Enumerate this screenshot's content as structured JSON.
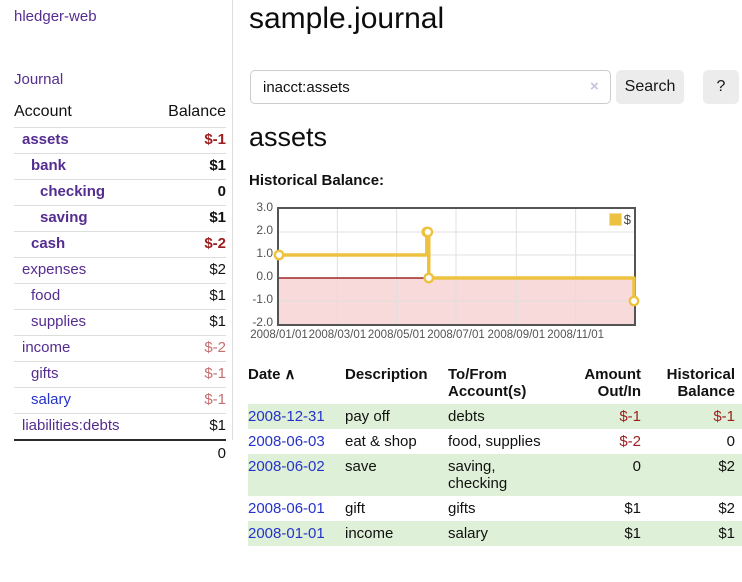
{
  "brand": "hledger-web",
  "sidebar": {
    "journal_link": "Journal",
    "accounts_header": {
      "account": "Account",
      "balance": "Balance"
    },
    "accounts": [
      {
        "name": "assets",
        "balance": "$-1",
        "level": 1,
        "bold": true,
        "neg": "strong"
      },
      {
        "name": "bank",
        "balance": "$1",
        "level": 2,
        "bold": true
      },
      {
        "name": "checking",
        "balance": "0",
        "level": 3,
        "bold": true
      },
      {
        "name": "saving",
        "balance": "$1",
        "level": 3,
        "bold": true
      },
      {
        "name": "cash",
        "balance": "$-2",
        "level": 2,
        "bold": true,
        "neg": "strong"
      },
      {
        "name": "expenses",
        "balance": "$2",
        "level": 1
      },
      {
        "name": "food",
        "balance": "$1",
        "level": 2
      },
      {
        "name": "supplies",
        "balance": "$1",
        "level": 2
      },
      {
        "name": "income",
        "balance": "$-2",
        "level": 1,
        "neg": "muted"
      },
      {
        "name": "gifts",
        "balance": "$-1",
        "level": 2,
        "neg": "muted"
      },
      {
        "name": "salary",
        "balance": "$-1",
        "level": 2,
        "neg": "muted",
        "link": "blue"
      },
      {
        "name": "liabilities:debts",
        "balance": "$1",
        "level": 1
      }
    ],
    "total": "0"
  },
  "header": {
    "title": "sample.journal"
  },
  "search": {
    "value": "inacct:assets",
    "clear_icon": "×",
    "button": "Search",
    "help_button": "?"
  },
  "account_page": {
    "heading": "assets",
    "chart_label": "Historical Balance:"
  },
  "colors": {
    "link_purple": "#552d90",
    "link_blue": "#2533c9",
    "negative_strong": "#9c1d1d",
    "negative_muted": "#c56f6f",
    "row_stripe_green": "#dff0d8",
    "series_gold": "#edc240",
    "negative_region_pink": "#f9dada",
    "zero_line_red": "#8b0000"
  },
  "chart_data": {
    "type": "line",
    "title": "Historical Balance",
    "steps": true,
    "series": [
      {
        "name": "$",
        "color": "#edc240",
        "points": [
          [
            "2008-01-01",
            1
          ],
          [
            "2008-06-01",
            2
          ],
          [
            "2008-06-02",
            2
          ],
          [
            "2008-06-03",
            0
          ],
          [
            "2008-12-31",
            -1
          ]
        ]
      }
    ],
    "xlim": [
      "2008-01-01",
      "2008-12-31"
    ],
    "ylim": [
      -2,
      3
    ],
    "x_ticks": [
      {
        "label": "2008/01/01",
        "date": "2008-01-01"
      },
      {
        "label": "2008/03/01",
        "date": "2008-03-01"
      },
      {
        "label": "2008/05/01",
        "date": "2008-05-01"
      },
      {
        "label": "2008/07/01",
        "date": "2008-07-01"
      },
      {
        "label": "2008/09/01",
        "date": "2008-09-01"
      },
      {
        "label": "2008/11/01",
        "date": "2008-11-01"
      }
    ],
    "y_ticks": [
      {
        "label": "3.0",
        "value": 3
      },
      {
        "label": "2.0",
        "value": 2
      },
      {
        "label": "1.0",
        "value": 1
      },
      {
        "label": "0.0",
        "value": 0
      },
      {
        "label": "-1.0",
        "value": -1
      },
      {
        "label": "-2.0",
        "value": -2
      }
    ],
    "grid": true,
    "legend": {
      "label": "$",
      "position": "top-right"
    },
    "negative_region_fill": "#f9dada",
    "zero_line_color": "#8b0000"
  },
  "register_table": {
    "header": {
      "date": "Date",
      "sort_icon": "∧",
      "description": "Description",
      "tofrom_1": "To/From",
      "tofrom_2": "Account(s)",
      "amount_1": "Amount",
      "amount_2": "Out/In",
      "balance_1": "Historical",
      "balance_2": "Balance"
    },
    "rows": [
      {
        "date": "2008-12-31",
        "description": "pay off",
        "accounts": "debts",
        "amount": "$-1",
        "amount_neg": true,
        "balance": "$-1",
        "balance_neg": true
      },
      {
        "date": "2008-06-03",
        "description": "eat & shop",
        "accounts": "food, supplies",
        "amount": "$-2",
        "amount_neg": true,
        "balance": "0",
        "balance_neg": false
      },
      {
        "date": "2008-06-02",
        "description": "save",
        "accounts": "saving, checking",
        "amount": "0",
        "amount_neg": false,
        "balance": "$2",
        "balance_neg": false
      },
      {
        "date": "2008-06-01",
        "description": "gift",
        "accounts": "gifts",
        "amount": "$1",
        "amount_neg": false,
        "balance": "$2",
        "balance_neg": false
      },
      {
        "date": "2008-01-01",
        "description": "income",
        "accounts": "salary",
        "amount": "$1",
        "amount_neg": false,
        "balance": "$1",
        "balance_neg": false
      }
    ]
  }
}
